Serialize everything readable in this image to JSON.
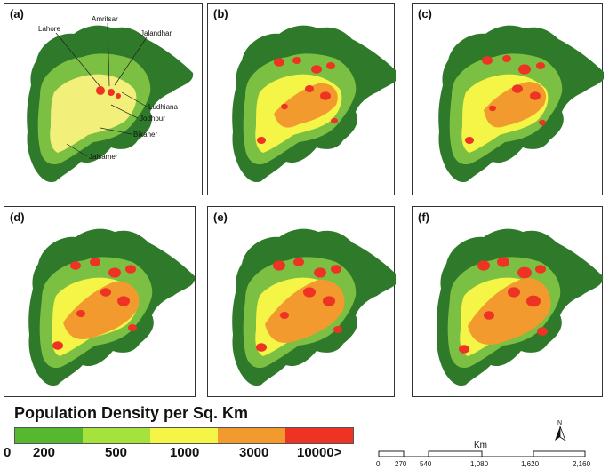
{
  "panels": [
    {
      "label": "(a)",
      "cities": [
        "Amritsar",
        "Lahore",
        "Jalandhar",
        "Ludhiana",
        "Jodhpur",
        "Bikaner",
        "Jaisamer"
      ]
    },
    {
      "label": "(b)"
    },
    {
      "label": "(c)"
    },
    {
      "label": "(d)"
    },
    {
      "label": "(e)"
    },
    {
      "label": "(f)"
    }
  ],
  "legend": {
    "title": "Population Density per Sq. Km",
    "classes": [
      {
        "label": "0",
        "color": "#56b82f"
      },
      {
        "label": "200",
        "color": "#a5e23b"
      },
      {
        "label": "500",
        "color": "#f5f548"
      },
      {
        "label": "1000",
        "color": "#f39a2f"
      },
      {
        "label": "3000",
        "color": "#ee3324"
      },
      {
        "label": "10000>",
        "color": ""
      }
    ]
  },
  "scale_bar": {
    "unit": "Km",
    "ticks": [
      "0",
      "270",
      "540",
      "1,080",
      "1,620",
      "2,160"
    ],
    "north": "N"
  },
  "colors": {
    "outer": "#2f7a2a",
    "mid": "#7cc043",
    "light": "#f2f07a",
    "yellow": "#f5f548",
    "orange": "#f39a2f",
    "red": "#ee3324"
  }
}
